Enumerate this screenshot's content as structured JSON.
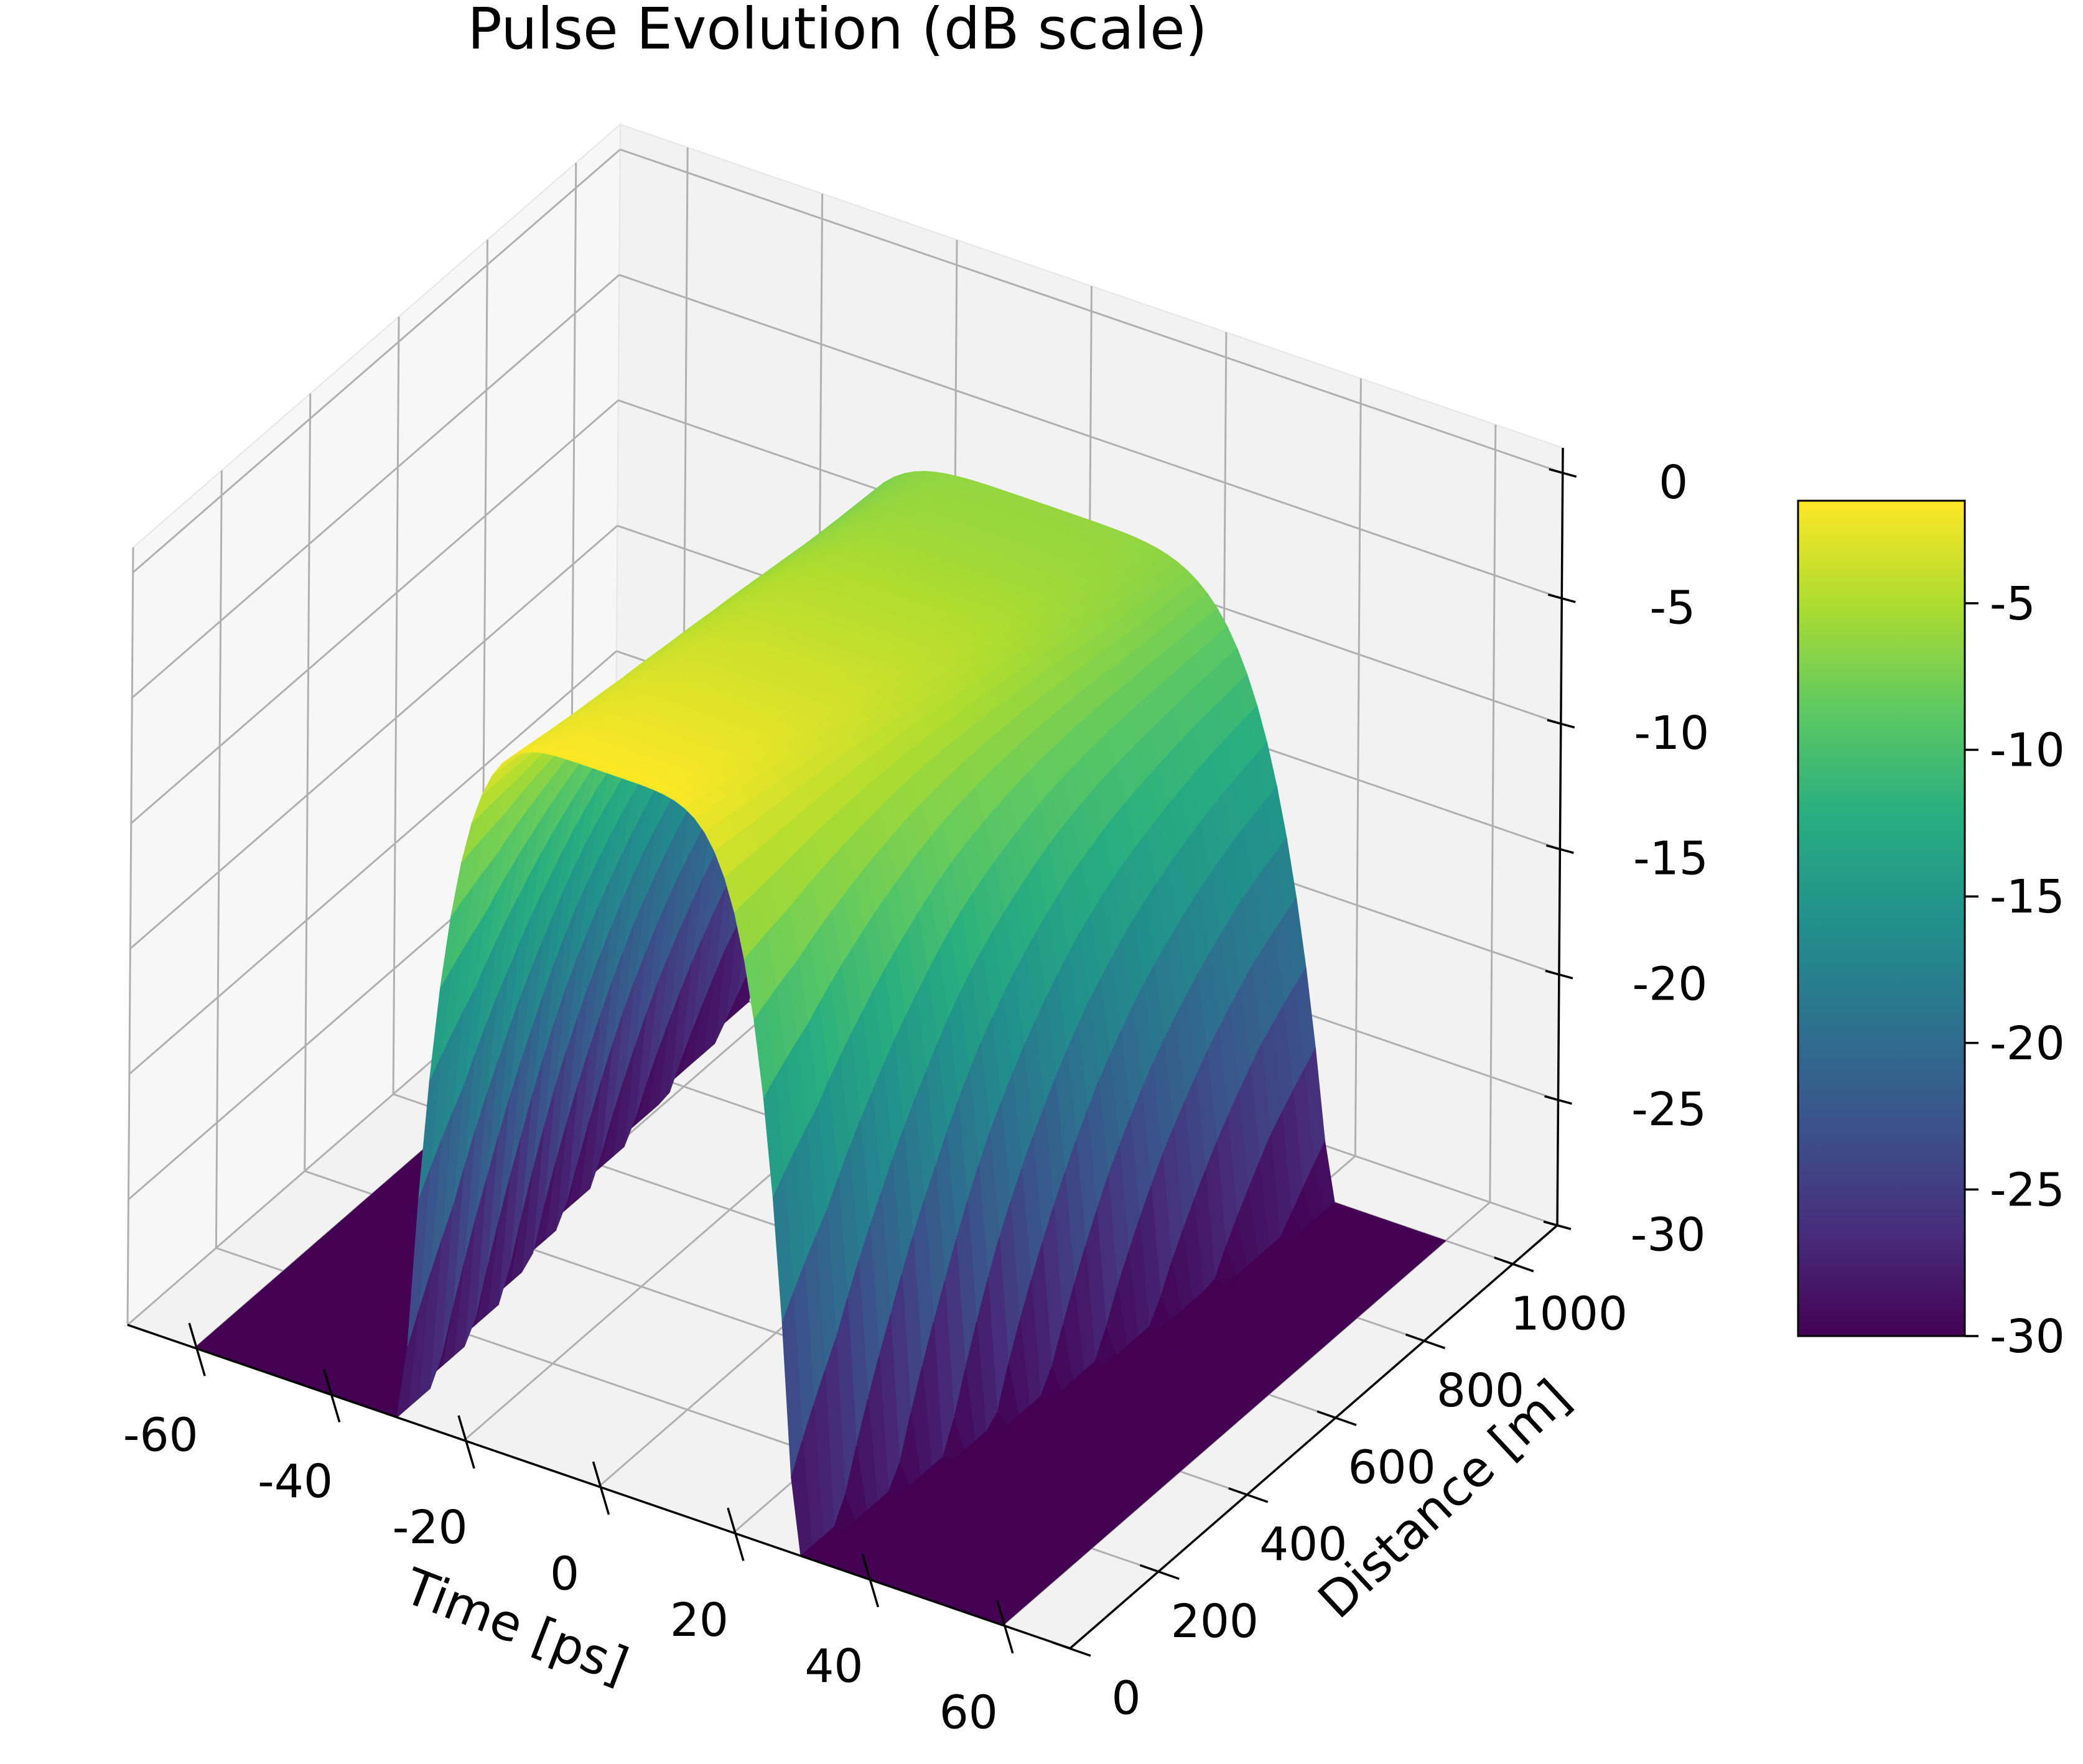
{
  "chart_data": {
    "type": "surface3d",
    "title": "Pulse Evolution (dB scale)",
    "xlabel": "Time [ps]",
    "ylabel": "Distance [m]",
    "zlabel": "",
    "xlim": [
      -70,
      70
    ],
    "ylim": [
      0,
      1100
    ],
    "zlim": [
      -30,
      1
    ],
    "x_ticks": [
      -60,
      -40,
      -20,
      0,
      20,
      40,
      60
    ],
    "y_ticks": [
      0,
      200,
      400,
      600,
      800,
      1000
    ],
    "z_ticks": [
      0,
      -5,
      -10,
      -15,
      -20,
      -25,
      -30
    ],
    "x_tick_labels": [
      "-60",
      "-40",
      "-20",
      "0",
      "20",
      "40",
      "60"
    ],
    "y_tick_labels": [
      "0",
      "200",
      "400",
      "600",
      "800",
      "1000"
    ],
    "z_tick_labels": [
      "0",
      "-5",
      "-10",
      "-15",
      "-20",
      "-25",
      "-30"
    ],
    "grid": true,
    "colormap": "viridis",
    "colormap_stops": [
      "#440154",
      "#472d7b",
      "#3b528b",
      "#2c728e",
      "#21918c",
      "#28ae80",
      "#5ec962",
      "#addc30",
      "#fde725"
    ],
    "surface": {
      "distance_m": [
        0,
        100,
        200,
        300,
        400,
        500,
        600,
        700,
        800,
        900,
        1000
      ],
      "pulse_width_ps": [
        20.0,
        20.8,
        21.9,
        23.1,
        24.4,
        25.6,
        26.8,
        27.9,
        28.9,
        29.8,
        30.5
      ],
      "peak_db": [
        -1.5,
        -2.0,
        -2.5,
        -3.0,
        -3.5,
        -4.0,
        -4.5,
        -5.0,
        -5.5,
        -5.9,
        -6.2
      ],
      "floor_db": -30
    },
    "colorbar": {
      "range": [
        -30,
        -1.5
      ],
      "ticks": [
        -5,
        -10,
        -15,
        -20,
        -25,
        -30
      ],
      "tick_labels": [
        "-5",
        "-10",
        "-15",
        "-20",
        "-25",
        "-30"
      ],
      "placement": "right"
    }
  }
}
